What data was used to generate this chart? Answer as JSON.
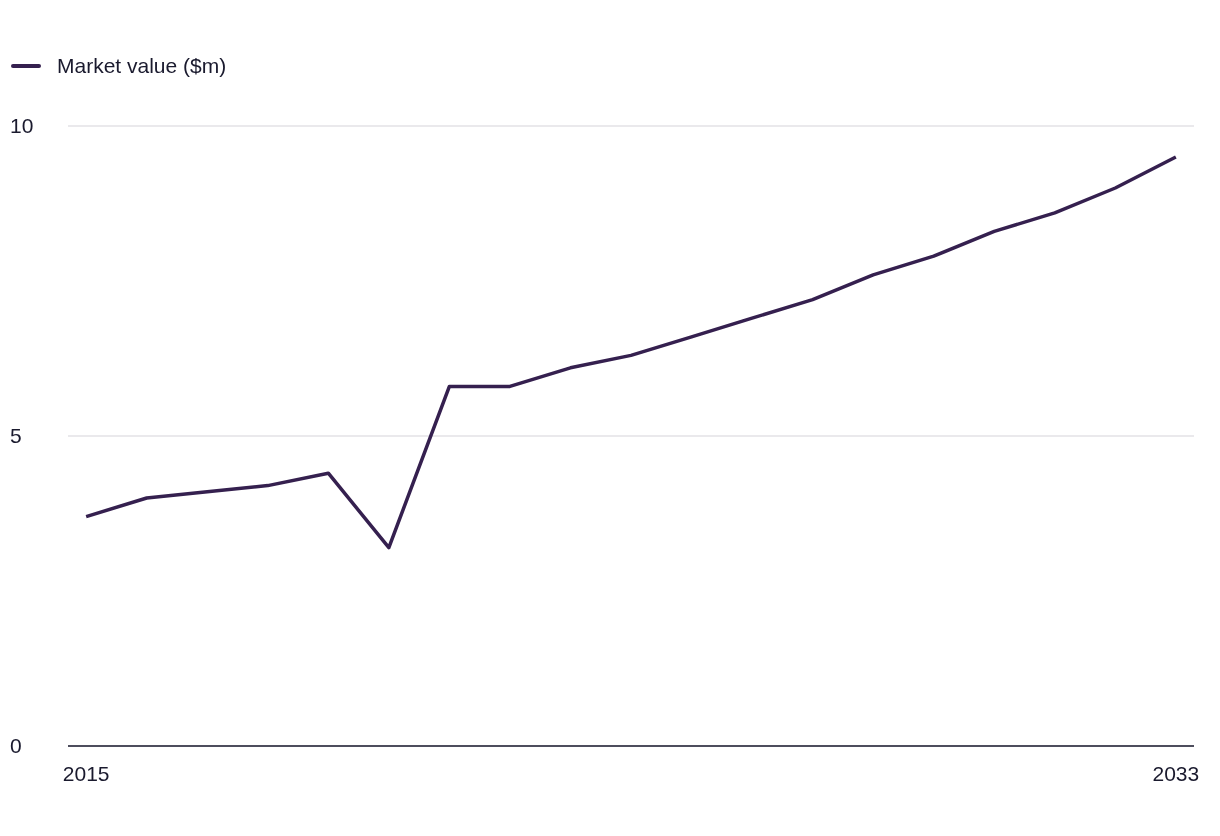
{
  "chart_data": {
    "type": "line",
    "x": [
      2015,
      2016,
      2017,
      2018,
      2019,
      2020,
      2021,
      2022,
      2023,
      2024,
      2025,
      2026,
      2027,
      2028,
      2029,
      2030,
      2031,
      2032,
      2033
    ],
    "series": [
      {
        "name": "Market value ($m)",
        "color": "#35204f",
        "values": [
          3.7,
          4.0,
          4.1,
          4.2,
          4.4,
          3.2,
          5.8,
          5.8,
          6.1,
          6.3,
          6.6,
          6.9,
          7.2,
          7.6,
          7.9,
          8.3,
          8.6,
          9.0,
          9.5
        ]
      }
    ],
    "xlim": [
      2014.7,
      2033.3
    ],
    "xticks": [
      2015,
      2033
    ],
    "ylim": [
      0,
      10
    ],
    "yticks": [
      0,
      5,
      10
    ],
    "grid": "y",
    "legend": "top left",
    "marker": "none",
    "line_style": "solid"
  }
}
